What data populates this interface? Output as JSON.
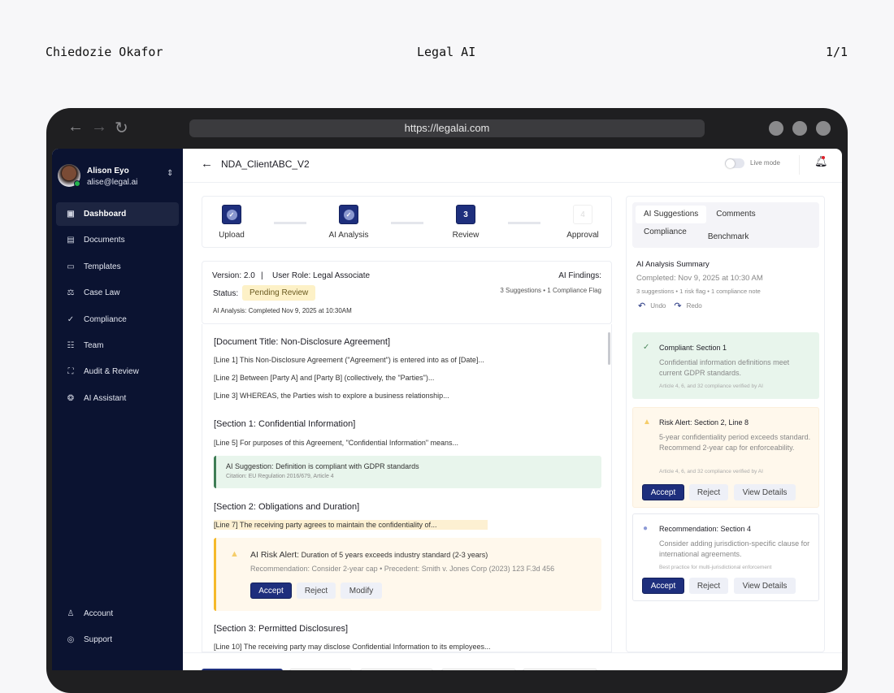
{
  "page": {
    "author": "Chiedozie Okafor",
    "title": "Legal AI",
    "page_num": "1/1"
  },
  "browser": {
    "url": "https://legalai.com"
  },
  "user": {
    "name": "Alison Eyo",
    "email": "alise@legal.ai"
  },
  "sidebar": {
    "items": [
      {
        "label": "Dashboard",
        "icon": "dashboard-icon"
      },
      {
        "label": "Documents",
        "icon": "document-icon"
      },
      {
        "label": "Templates",
        "icon": "template-icon"
      },
      {
        "label": "Case Law",
        "icon": "scale-icon"
      },
      {
        "label": "Compliance",
        "icon": "check-circle-icon"
      },
      {
        "label": "Team",
        "icon": "team-icon"
      },
      {
        "label": "Audit & Review",
        "icon": "audit-icon"
      },
      {
        "label": "AI Assistant",
        "icon": "brain-icon"
      }
    ],
    "bottom": [
      {
        "label": "Account",
        "icon": "user-icon"
      },
      {
        "label": "Support",
        "icon": "support-icon"
      }
    ]
  },
  "header": {
    "doc_title": "NDA_ClientABC_V2",
    "live_mode": "Live mode",
    "live_mode_on": false
  },
  "stepper": [
    {
      "num": "1",
      "label": "Upload",
      "state": "done"
    },
    {
      "num": "2",
      "label": "AI Analysis",
      "state": "done"
    },
    {
      "num": "3",
      "label": "Review",
      "state": "current"
    },
    {
      "num": "4",
      "label": "Approval",
      "state": "pending"
    }
  ],
  "info": {
    "version": "Version: 2.0",
    "sep": "|",
    "role": "User Role: Legal Associate",
    "status_label": "Status:",
    "status": "Pending Review",
    "analysis": "AI Analysis: Completed Nov 9, 2025 at 10:30AM",
    "findings_label": "AI Findings:",
    "findings": "3 Suggestions • 1 Compliance Flag"
  },
  "document": {
    "title": "[Document Title: Non-Disclosure Agreement]",
    "lines": [
      "[Line 1] This Non-Disclosure Agreement (\"Agreement\") is entered into as of [Date]...",
      "[Line 2] Between [Party A] and [Party B] (collectively, the \"Parties\")...",
      "[Line 3] WHEREAS, the Parties wish to explore a business relationship..."
    ],
    "s1": "[Section 1: Confidential Information]",
    "s1_line": "[Line 5] For purposes of this Agreement, \"Confidential Information\" means...",
    "suggestion": {
      "label": "AI Suggestion:",
      "text": "Definition is compliant with GDPR standards",
      "citation": "Citation: EU Regulation 2016/679, Article 4"
    },
    "s2": "[Section 2: Obligations and Duration]",
    "s2_line": "[Line 7] The receiving party agrees to maintain the confidentiality of...",
    "risk": {
      "label": "AI Risk Alert:",
      "text": "Duration of 5 years exceeds industry standard (2-3 years)",
      "rec": "Recommendation: Consider 2-year cap • Precedent: Smith v. Jones Corp (2023) 123 F.3d 456",
      "accept": "Accept",
      "reject": "Reject",
      "modify": "Modify"
    },
    "s3": "[Section 3: Permitted Disclosures]",
    "s3_line": "[Line 10] The receiving party may disclose Confidential Information to its employees..."
  },
  "panel": {
    "tabs": [
      "AI Suggestions",
      "Comments",
      "Compliance",
      "Benchmark"
    ],
    "summary_title": "AI Analysis Summary",
    "summary_date": "Completed: Nov 9, 2025 at 10:30 AM",
    "summary_counts": "3 suggestions • 1 risk flag • 1 compliance note",
    "undo": "Undo",
    "redo": "Redo",
    "cards": [
      {
        "type": "compliant",
        "title": "Compliant: Section 1",
        "body": "Confidential information definitions meet current GDPR standards.",
        "note": "Article 4, 6, and 32 compliance verified by AI"
      },
      {
        "type": "risk",
        "title": "Risk Alert: Section 2, Line 8",
        "body": "5-year confidentiality period exceeds standard. Recommend 2-year cap for enforceability.",
        "note": "Article 4, 6, and 32 compliance verified by AI",
        "accept": "Accept",
        "reject": "Reject",
        "details": "View Details"
      },
      {
        "type": "recommendation",
        "title": "Recommendation: Section 4",
        "body": "Consider adding jurisdiction-specific clause for international agreements.",
        "note": "Best practice for multi-jurisdictional enforcement",
        "accept": "Accept",
        "reject": "Reject",
        "details": "View Details"
      }
    ]
  },
  "colors": {
    "primary": "#1e2f7d",
    "sidebar": "#0b1331",
    "success_bg": "#e8f5ec",
    "warning_bg": "#fff8ec",
    "warning_border": "#f5b92a",
    "status_bg": "#fdf1c7"
  }
}
